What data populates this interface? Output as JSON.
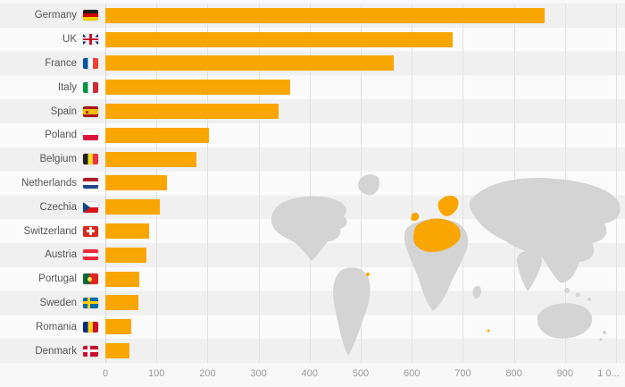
{
  "chart_data": {
    "type": "bar",
    "orientation": "horizontal",
    "title": "",
    "categories": [
      "Germany",
      "UK",
      "France",
      "Italy",
      "Spain",
      "Poland",
      "Belgium",
      "Netherlands",
      "Czechia",
      "Switzerland",
      "Austria",
      "Portugal",
      "Sweden",
      "Romania",
      "Denmark"
    ],
    "flag_keys": [
      "germany",
      "uk",
      "france",
      "italy",
      "spain",
      "poland",
      "belgium",
      "netherlands",
      "czechia",
      "switzerland",
      "austria",
      "portugal",
      "sweden",
      "romania",
      "denmark"
    ],
    "values": [
      860,
      680,
      565,
      362,
      340,
      202,
      178,
      120,
      106,
      85,
      80,
      67,
      64,
      51,
      48
    ],
    "x_ticks": [
      "0",
      "100",
      "200",
      "300",
      "400",
      "500",
      "600",
      "700",
      "800",
      "900",
      "1 0..."
    ],
    "xlim": [
      0,
      1000
    ],
    "bar_color": "#F9A602",
    "grid": true,
    "legend": "none",
    "background": {
      "world_map": true,
      "map_color": "#d4d4d4",
      "highlight_region": "Europe",
      "highlight_color": "#F9A602"
    }
  },
  "colors": {
    "page_background": "#f8f8f8",
    "row_stripe_dark": "#f0f0f0",
    "row_stripe_light": "#fafafa",
    "gridline": "#e2e2e2",
    "axis_text": "#999999",
    "label_text": "#555555"
  }
}
